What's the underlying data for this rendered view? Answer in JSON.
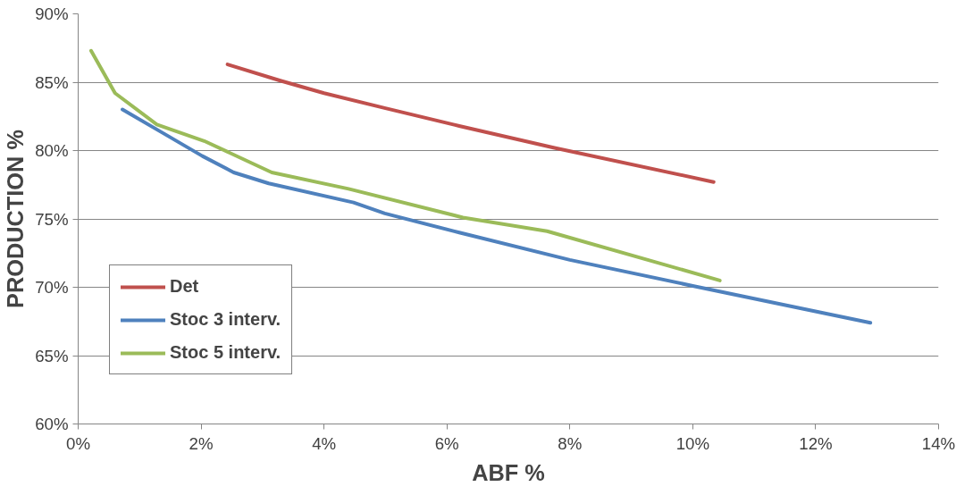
{
  "chart_data": {
    "type": "line",
    "xlabel": "ABF %",
    "ylabel": "PRODUCTION %",
    "xlim": [
      0,
      14
    ],
    "ylim": [
      60,
      90
    ],
    "xticks": [
      {
        "value": 0,
        "label": "0%"
      },
      {
        "value": 2,
        "label": "2%"
      },
      {
        "value": 4,
        "label": "4%"
      },
      {
        "value": 6,
        "label": "6%"
      },
      {
        "value": 8,
        "label": "8%"
      },
      {
        "value": 10,
        "label": "10%"
      },
      {
        "value": 12,
        "label": "12%"
      },
      {
        "value": 14,
        "label": "14%"
      }
    ],
    "yticks": [
      {
        "value": 60,
        "label": "60%"
      },
      {
        "value": 65,
        "label": "65%"
      },
      {
        "value": 70,
        "label": "70%"
      },
      {
        "value": 75,
        "label": "75%"
      },
      {
        "value": 80,
        "label": "80%"
      },
      {
        "value": 85,
        "label": "85%"
      },
      {
        "value": 90,
        "label": "90%"
      }
    ],
    "grid": "y",
    "legend": "bottom left",
    "marker": "none",
    "line_style": "solid",
    "series": [
      {
        "name": "Det",
        "color": "#c0504d",
        "x": [
          2.43,
          3.3,
          4.0,
          5.0,
          6.2,
          7.75,
          10.34
        ],
        "values": [
          86.3,
          85.1,
          84.2,
          83.1,
          81.8,
          80.2,
          77.7
        ]
      },
      {
        "name": "Stoc 3 interv.",
        "color": "#4f81bd",
        "x": [
          0.72,
          1.41,
          2.02,
          2.53,
          3.1,
          4.48,
          4.99,
          6.2,
          8.0,
          10.0,
          12.89
        ],
        "values": [
          83.0,
          81.2,
          79.6,
          78.4,
          77.6,
          76.2,
          75.4,
          74.0,
          72.0,
          70.1,
          67.4
        ]
      },
      {
        "name": "Stoc 5 interv.",
        "color": "#9bbb59",
        "x": [
          0.21,
          0.6,
          1.28,
          2.05,
          3.15,
          4.4,
          6.26,
          7.63,
          10.44
        ],
        "values": [
          87.3,
          84.2,
          81.9,
          80.7,
          78.4,
          77.2,
          75.1,
          74.1,
          70.5
        ]
      }
    ]
  }
}
